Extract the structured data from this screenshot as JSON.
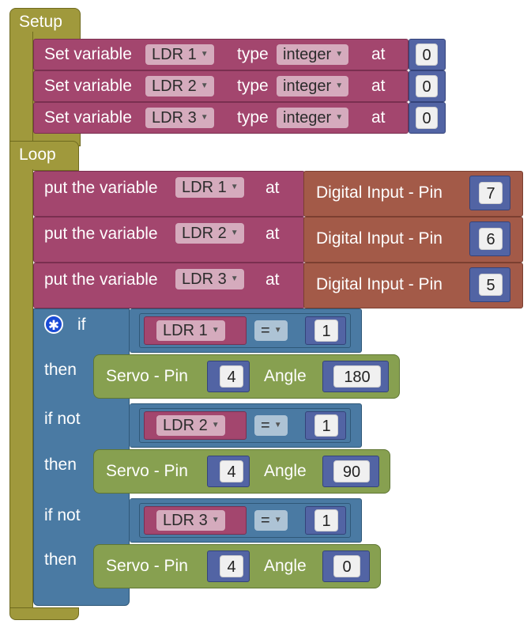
{
  "setup_label": "Setup",
  "loop_label": "Loop",
  "set_var_label": "Set variable",
  "type_label": "type",
  "at_label": "at",
  "put_label": "put the variable",
  "digital_label": "Digital Input - Pin",
  "if_label": "if",
  "then_label": "then",
  "ifnot_label": "if not",
  "servo_label": "Servo - Pin",
  "angle_label": "Angle",
  "eq_op": "=",
  "setup_rows": [
    {
      "var": "LDR 1",
      "type": "integer",
      "value": "0"
    },
    {
      "var": "LDR 2",
      "type": "integer",
      "value": "0"
    },
    {
      "var": "LDR 3",
      "type": "integer",
      "value": "0"
    }
  ],
  "loop_rows": [
    {
      "var": "LDR 1",
      "pin": "7"
    },
    {
      "var": "LDR 2",
      "pin": "6"
    },
    {
      "var": "LDR 3",
      "pin": "5"
    }
  ],
  "conditions": [
    {
      "var": "LDR 1",
      "value": "1",
      "servo_pin": "4",
      "angle": "180"
    },
    {
      "var": "LDR 2",
      "value": "1",
      "servo_pin": "4",
      "angle": "90"
    },
    {
      "var": "LDR 3",
      "value": "1",
      "servo_pin": "4",
      "angle": "0"
    }
  ],
  "icons": {
    "gear": "gear-icon",
    "dropdown": "dropdown-arrow-icon"
  }
}
